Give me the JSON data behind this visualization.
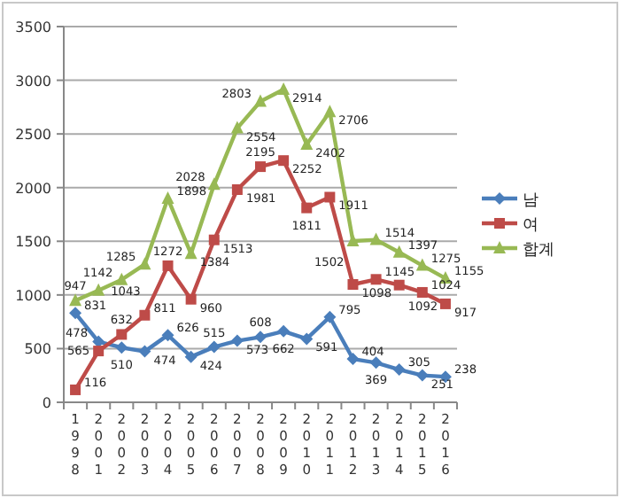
{
  "chart_data": {
    "type": "line",
    "categories": [
      "1998",
      "2001",
      "2002",
      "2003",
      "2004",
      "2005",
      "2006",
      "2007",
      "2008",
      "2009",
      "2010",
      "2011",
      "2012",
      "2013",
      "2014",
      "2015",
      "2016"
    ],
    "series": [
      {
        "name": "남",
        "color": "#4a7ebb",
        "marker": "diamond",
        "values": [
          831,
          565,
          510,
          474,
          626,
          424,
          515,
          573,
          608,
          662,
          591,
          795,
          404,
          369,
          305,
          251,
          238
        ]
      },
      {
        "name": "여",
        "color": "#be4b48",
        "marker": "square",
        "values": [
          116,
          478,
          632,
          811,
          1272,
          960,
          1513,
          1981,
          2195,
          2252,
          1811,
          1911,
          1098,
          1145,
          1092,
          1024,
          917
        ]
      },
      {
        "name": "합계",
        "color": "#98b954",
        "marker": "triangle",
        "values": [
          947,
          1043,
          1142,
          1285,
          1898,
          1384,
          2028,
          2554,
          2803,
          2914,
          2402,
          2706,
          1502,
          1514,
          1397,
          1275,
          1155
        ]
      }
    ],
    "ylim": [
      0,
      3500
    ],
    "yticks": [
      0,
      500,
      1000,
      1500,
      2000,
      2500,
      3000,
      3500
    ],
    "grid": "y",
    "legend": "right",
    "data_labels": true
  }
}
